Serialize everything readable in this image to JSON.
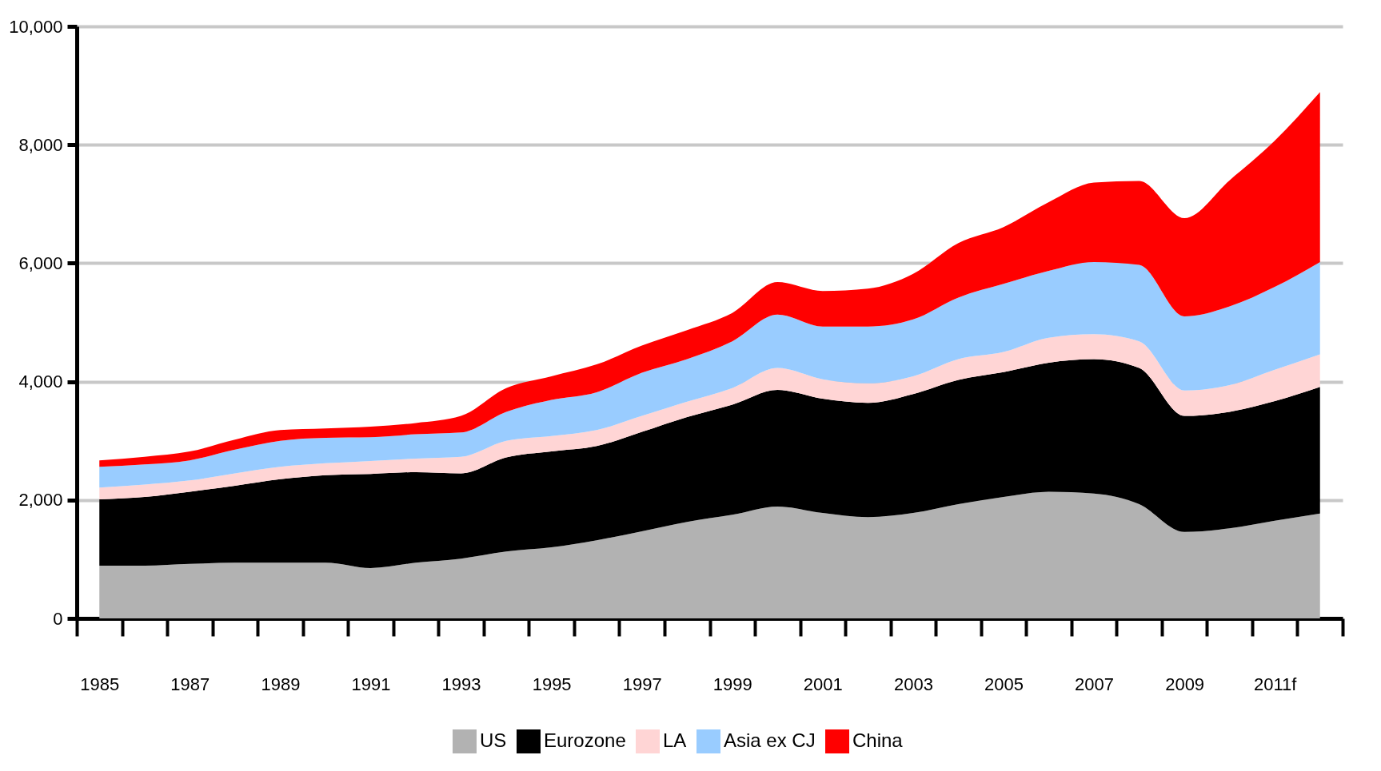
{
  "chart_data": {
    "type": "area",
    "stacked": true,
    "grid": "y",
    "legend": "bottom",
    "categories": [
      "1985",
      null,
      "1987",
      null,
      "1989",
      null,
      "1991",
      null,
      "1993",
      null,
      "1995",
      null,
      "1997",
      null,
      "1999",
      null,
      "2001",
      null,
      "2003",
      null,
      "2005",
      null,
      "2007",
      null,
      "2009",
      null,
      "2011f",
      null
    ],
    "ylim": [
      0,
      10000
    ],
    "yticks": [
      0,
      {
        "value": 2000,
        "label": "2,000"
      },
      {
        "value": 4000,
        "label": "4,000"
      },
      {
        "value": 6000,
        "label": "6,000"
      },
      {
        "value": 8000,
        "label": "8,000"
      },
      {
        "value": 10000,
        "label": "10,000"
      }
    ],
    "series": [
      {
        "name": "US",
        "color": "#b2b2b2",
        "values": [
          890,
          890,
          920,
          940,
          940,
          940,
          850,
          940,
          1010,
          1130,
          1200,
          1320,
          1470,
          1630,
          1750,
          1890,
          1780,
          1710,
          1780,
          1930,
          2050,
          2140,
          2110,
          1930,
          1460,
          1520,
          1650,
          1770
        ]
      },
      {
        "name": "Eurozone",
        "color": "#000000",
        "values": [
          1120,
          1160,
          1220,
          1300,
          1410,
          1480,
          1590,
          1530,
          1440,
          1590,
          1620,
          1590,
          1680,
          1770,
          1860,
          1970,
          1930,
          1930,
          2010,
          2100,
          2110,
          2180,
          2270,
          2300,
          1960,
          1970,
          2020,
          2140
        ]
      },
      {
        "name": "LA",
        "color": "#ffd5d5",
        "values": [
          200,
          210,
          190,
          210,
          210,
          200,
          220,
          230,
          280,
          280,
          260,
          270,
          270,
          260,
          280,
          370,
          330,
          330,
          300,
          350,
          340,
          420,
          420,
          450,
          430,
          450,
          530,
          550
        ]
      },
      {
        "name": "Asia ex CJ",
        "color": "#99ccff",
        "values": [
          350,
          340,
          340,
          400,
          440,
          430,
          400,
          410,
          410,
          490,
          610,
          640,
          730,
          720,
          790,
          900,
          890,
          960,
          960,
          1040,
          1150,
          1130,
          1220,
          1290,
          1250,
          1330,
          1400,
          1560
        ]
      },
      {
        "name": "China",
        "color": "#ff0000",
        "values": [
          110,
          130,
          150,
          170,
          180,
          160,
          180,
          190,
          280,
          400,
          400,
          470,
          460,
          490,
          480,
          550,
          600,
          640,
          770,
          920,
          960,
          1160,
          1340,
          1420,
          1660,
          2130,
          2470,
          2870
        ]
      }
    ]
  }
}
